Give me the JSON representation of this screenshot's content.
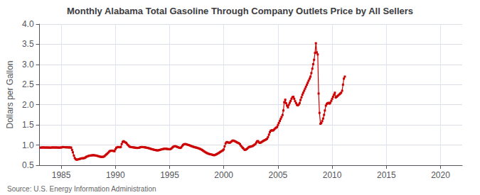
{
  "chart_data": {
    "type": "line",
    "title": "Monthly Alabama Total Gasoline Through Company Outlets Price by All Sellers",
    "ylabel": "Dollars per Gallon",
    "annotations": [
      "Source: U.S. Energy Information Administration"
    ],
    "color": "#cc0000",
    "marker": "square",
    "grid": true,
    "xlim": [
      1983,
      2022
    ],
    "ylim": [
      0.5,
      4.0
    ],
    "xticks": [
      1985,
      1990,
      1995,
      2000,
      2005,
      2010,
      2015,
      2020
    ],
    "yticks": [
      0.5,
      {
        "value": 1,
        "label": "1.0"
      },
      1.5,
      {
        "value": 2,
        "label": "2.0"
      },
      2.5,
      {
        "value": 3,
        "label": "3.0"
      },
      3.5,
      {
        "value": 4,
        "label": "4.0"
      }
    ],
    "x": [
      1983.08,
      1983.17,
      1983.25,
      1983.33,
      1983.42,
      1983.5,
      1983.58,
      1983.67,
      1983.75,
      1983.83,
      1983.92,
      1984,
      1984.08,
      1984.17,
      1984.25,
      1984.33,
      1984.42,
      1984.5,
      1984.58,
      1984.67,
      1984.75,
      1984.83,
      1984.92,
      1985,
      1985.08,
      1985.17,
      1985.25,
      1985.33,
      1985.42,
      1985.5,
      1985.58,
      1985.67,
      1985.75,
      1985.83,
      1985.92,
      1986,
      1986.08,
      1986.17,
      1986.25,
      1986.33,
      1986.42,
      1986.5,
      1986.58,
      1986.67,
      1986.75,
      1986.83,
      1986.92,
      1987,
      1987.08,
      1987.17,
      1987.25,
      1987.33,
      1987.42,
      1987.5,
      1987.58,
      1987.67,
      1987.75,
      1987.83,
      1987.92,
      1988,
      1988.08,
      1988.17,
      1988.25,
      1988.33,
      1988.42,
      1988.5,
      1988.58,
      1988.67,
      1988.75,
      1988.83,
      1988.92,
      1989,
      1989.08,
      1989.17,
      1989.25,
      1989.33,
      1989.42,
      1989.5,
      1989.58,
      1989.67,
      1989.75,
      1989.83,
      1989.92,
      1990,
      1990.08,
      1990.17,
      1990.25,
      1990.33,
      1990.42,
      1990.5,
      1990.58,
      1990.67,
      1990.75,
      1990.83,
      1990.92,
      1991,
      1991.08,
      1991.17,
      1991.25,
      1991.33,
      1991.42,
      1991.5,
      1991.58,
      1991.67,
      1991.75,
      1991.83,
      1991.92,
      1992,
      1992.08,
      1992.17,
      1992.25,
      1992.33,
      1992.42,
      1992.5,
      1992.58,
      1992.67,
      1992.75,
      1992.83,
      1992.92,
      1993,
      1993.08,
      1993.17,
      1993.25,
      1993.33,
      1993.42,
      1993.5,
      1993.58,
      1993.67,
      1993.75,
      1993.83,
      1993.92,
      1994,
      1994.08,
      1994.17,
      1994.25,
      1994.33,
      1994.42,
      1994.5,
      1994.58,
      1994.67,
      1994.75,
      1994.83,
      1994.92,
      1995,
      1995.08,
      1995.17,
      1995.25,
      1995.33,
      1995.42,
      1995.5,
      1995.58,
      1995.67,
      1995.75,
      1995.83,
      1995.92,
      1996,
      1996.08,
      1996.17,
      1996.25,
      1996.33,
      1996.42,
      1996.5,
      1996.58,
      1996.67,
      1996.75,
      1996.83,
      1996.92,
      1997,
      1997.08,
      1997.17,
      1997.25,
      1997.33,
      1997.42,
      1997.5,
      1997.58,
      1997.67,
      1997.75,
      1997.83,
      1997.92,
      1998,
      1998.08,
      1998.17,
      1998.25,
      1998.33,
      1998.42,
      1998.5,
      1998.58,
      1998.67,
      1998.75,
      1998.83,
      1998.92,
      1999,
      1999.08,
      1999.17,
      1999.25,
      1999.33,
      1999.42,
      1999.5,
      1999.58,
      1999.67,
      1999.75,
      1999.83,
      1999.92,
      2000,
      2000.08,
      2000.17,
      2000.25,
      2000.33,
      2000.42,
      2000.5,
      2000.58,
      2000.67,
      2000.75,
      2000.83,
      2000.92,
      2001,
      2001.08,
      2001.17,
      2001.25,
      2001.33,
      2001.42,
      2001.5,
      2001.58,
      2001.67,
      2001.75,
      2001.83,
      2001.92,
      2002,
      2002.08,
      2002.17,
      2002.25,
      2002.33,
      2002.42,
      2002.5,
      2002.58,
      2002.67,
      2002.75,
      2002.83,
      2002.92,
      2003,
      2003.08,
      2003.17,
      2003.25,
      2003.33,
      2003.42,
      2003.5,
      2003.58,
      2003.67,
      2003.75,
      2003.83,
      2003.92,
      2004,
      2004.08,
      2004.17,
      2004.25,
      2004.33,
      2004.42,
      2004.5,
      2004.58,
      2004.67,
      2004.75,
      2004.83,
      2004.92,
      2005,
      2005.08,
      2005.17,
      2005.25,
      2005.33,
      2005.42,
      2005.5,
      2005.58,
      2005.67,
      2005.75,
      2005.83,
      2005.92,
      2006,
      2006.08,
      2006.17,
      2006.25,
      2006.33,
      2006.42,
      2006.5,
      2006.58,
      2006.67,
      2006.75,
      2006.83,
      2006.92,
      2007,
      2007.08,
      2007.17,
      2007.25,
      2007.33,
      2007.42,
      2007.5,
      2007.58,
      2007.67,
      2007.75,
      2007.83,
      2007.92,
      2008,
      2008.08,
      2008.17,
      2008.25,
      2008.33,
      2008.42,
      2008.5,
      2008.58,
      2008.67,
      2008.75,
      2008.83,
      2008.92,
      2009,
      2009.08,
      2009.17,
      2009.25,
      2009.33,
      2009.42,
      2009.5,
      2009.58,
      2009.67,
      2009.75,
      2009.83,
      2009.92,
      2010,
      2010.08,
      2010.17,
      2010.25,
      2010.33,
      2010.42,
      2010.5,
      2010.58,
      2010.67,
      2010.75,
      2010.83,
      2010.92,
      2011,
      2011.08,
      2011.17
    ],
    "values": [
      0.935,
      0.94,
      0.938,
      0.942,
      0.94,
      0.937,
      0.938,
      0.94,
      0.938,
      0.937,
      0.938,
      0.935,
      0.937,
      0.94,
      0.942,
      0.94,
      0.938,
      0.94,
      0.94,
      0.938,
      0.937,
      0.936,
      0.937,
      0.94,
      0.945,
      0.952,
      0.948,
      0.946,
      0.944,
      0.945,
      0.943,
      0.942,
      0.941,
      0.94,
      0.938,
      0.88,
      0.82,
      0.74,
      0.68,
      0.65,
      0.635,
      0.64,
      0.648,
      0.652,
      0.66,
      0.668,
      0.672,
      0.672,
      0.675,
      0.68,
      0.695,
      0.71,
      0.72,
      0.728,
      0.735,
      0.74,
      0.742,
      0.745,
      0.748,
      0.748,
      0.745,
      0.742,
      0.738,
      0.732,
      0.725,
      0.718,
      0.712,
      0.708,
      0.705,
      0.708,
      0.712,
      0.725,
      0.748,
      0.768,
      0.785,
      0.81,
      0.835,
      0.852,
      0.858,
      0.862,
      0.858,
      0.852,
      0.848,
      0.895,
      0.932,
      0.945,
      0.952,
      0.948,
      0.945,
      0.952,
      1.025,
      1.078,
      1.095,
      1.082,
      1.065,
      1.055,
      1.025,
      0.998,
      0.975,
      0.958,
      0.952,
      0.948,
      0.945,
      0.942,
      0.938,
      0.935,
      0.932,
      0.928,
      0.93,
      0.932,
      0.94,
      0.948,
      0.952,
      0.95,
      0.948,
      0.945,
      0.942,
      0.938,
      0.932,
      0.928,
      0.922,
      0.915,
      0.908,
      0.9,
      0.895,
      0.888,
      0.882,
      0.878,
      0.872,
      0.87,
      0.868,
      0.872,
      0.878,
      0.885,
      0.892,
      0.898,
      0.902,
      0.908,
      0.91,
      0.908,
      0.905,
      0.902,
      0.898,
      0.895,
      0.9,
      0.915,
      0.938,
      0.955,
      0.968,
      0.972,
      0.968,
      0.958,
      0.948,
      0.94,
      0.932,
      0.928,
      0.945,
      0.978,
      1.005,
      1.02,
      1.025,
      1.022,
      1.015,
      1.008,
      1.002,
      0.995,
      0.985,
      0.975,
      0.968,
      0.96,
      0.952,
      0.945,
      0.94,
      0.935,
      0.928,
      0.92,
      0.912,
      0.902,
      0.892,
      0.878,
      0.862,
      0.848,
      0.832,
      0.818,
      0.805,
      0.795,
      0.785,
      0.778,
      0.772,
      0.768,
      0.762,
      0.755,
      0.748,
      0.752,
      0.762,
      0.772,
      0.785,
      0.798,
      0.812,
      0.828,
      0.842,
      0.855,
      0.87,
      0.892,
      0.968,
      1.042,
      1.068,
      1.075,
      1.062,
      1.055,
      1.062,
      1.078,
      1.098,
      1.112,
      1.108,
      1.098,
      1.088,
      1.075,
      1.062,
      1.052,
      1.042,
      1.018,
      0.985,
      0.955,
      0.932,
      0.908,
      0.882,
      0.882,
      0.895,
      0.912,
      0.935,
      0.952,
      0.958,
      0.962,
      0.968,
      0.978,
      0.992,
      1.008,
      1.025,
      1.062,
      1.095,
      1.098,
      1.065,
      1.055,
      1.062,
      1.078,
      1.092,
      1.105,
      1.118,
      1.128,
      1.142,
      1.158,
      1.198,
      1.258,
      1.318,
      1.355,
      1.368,
      1.358,
      1.368,
      1.392,
      1.415,
      1.432,
      1.448,
      1.498,
      1.548,
      1.598,
      1.648,
      1.695,
      1.745,
      1.858,
      2.062,
      2.125,
      2.038,
      1.978,
      1.935,
      1.998,
      2.048,
      2.095,
      2.148,
      2.188,
      2.198,
      2.148,
      2.088,
      2.042,
      1.998,
      1.985,
      2.005,
      2.042,
      2.118,
      2.185,
      2.248,
      2.298,
      2.348,
      2.398,
      2.448,
      2.498,
      2.548,
      2.598,
      2.648,
      2.698,
      2.785,
      2.895,
      3.005,
      3.115,
      3.285,
      3.525,
      3.298,
      3.248,
      2.278,
      1.798,
      1.528,
      1.548,
      1.595,
      1.658,
      1.748,
      1.858,
      1.978,
      2.018,
      2.038,
      2.048,
      2.028,
      2.048,
      2.098,
      2.148,
      2.198,
      2.248,
      2.298,
      2.178,
      2.198,
      2.218,
      2.238,
      2.258,
      2.278,
      2.298,
      2.348,
      2.498,
      2.648,
      2.698
    ]
  }
}
